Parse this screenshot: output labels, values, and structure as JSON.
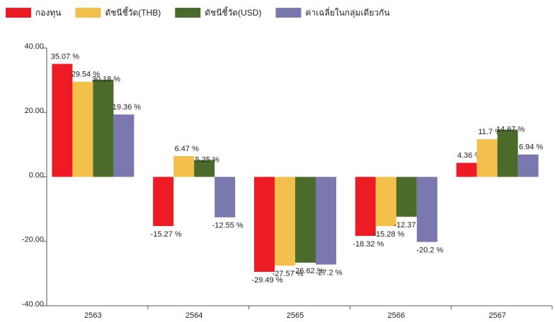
{
  "chart_data": {
    "type": "bar",
    "categories": [
      "2563",
      "2564",
      "2565",
      "2566",
      "2567"
    ],
    "series": [
      {
        "name": "กองทุน",
        "color": "#ed1c24",
        "values": [
          35.07,
          -15.27,
          -29.49,
          -18.32,
          4.36
        ],
        "value_labels": [
          "35.07 %",
          "-15.27 %",
          "-29.49 %",
          "-18.32 %",
          "4.36 %"
        ]
      },
      {
        "name": "ดัชนีชี้วัด(THB)",
        "color": "#f4c04c",
        "values": [
          29.54,
          6.47,
          -27.57,
          -15.28,
          11.7
        ],
        "value_labels": [
          "29.54 %",
          "6.47 %",
          "-27.57 %",
          "-15.28 %",
          "11.7 %"
        ]
      },
      {
        "name": "ดัชนีชี้วัด(USD)",
        "color": "#4b6b2a",
        "values": [
          30.18,
          5.25,
          -26.62,
          -12.37,
          14.67
        ],
        "value_labels": [
          "30.18 %",
          "5.25 %",
          "-26.62 %",
          "-12.37 %",
          "14.67 %"
        ]
      },
      {
        "name": "ค่าเฉลี่ยในกลุ่มเดียวกัน",
        "color": "#7b78b0",
        "values": [
          19.36,
          -12.55,
          -27.2,
          -20.2,
          6.94
        ],
        "value_labels": [
          "19.36 %",
          "-12.55 %",
          "-27.2 %",
          "-20.2 %",
          "6.94 %"
        ]
      }
    ],
    "ylim": [
      -40,
      40
    ],
    "yticks": [
      {
        "value": -40,
        "label": "-40.00"
      },
      {
        "value": -20,
        "label": "-20.00"
      },
      {
        "value": 0,
        "label": "0.00"
      },
      {
        "value": 20,
        "label": "20.00"
      },
      {
        "value": 40,
        "label": "40.00"
      }
    ],
    "grid": false
  }
}
